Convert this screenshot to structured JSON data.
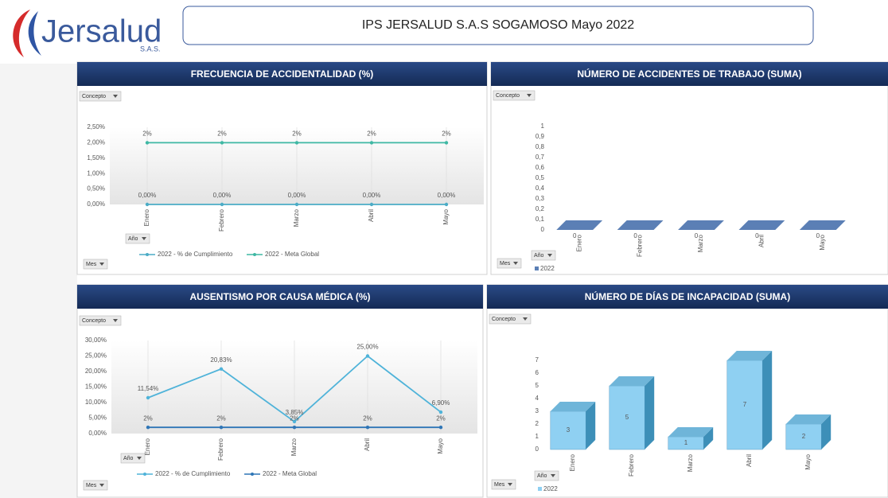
{
  "header": {
    "logo": "Jersalud",
    "logo_sub": "S.A.S.",
    "title": "IPS JERSALUD S.A.S SOGAMOSO  Mayo 2022"
  },
  "chart_data": [
    {
      "type": "line",
      "title": "FRECUENCIA DE ACCIDENTALIDAD (%)",
      "filters": [
        "Concepto",
        "Año",
        "Mes"
      ],
      "categories": [
        "Enero",
        "Febrero",
        "Marzo",
        "Abril",
        "Mayo"
      ],
      "series": [
        {
          "name": "2022 - % de Cumplimiento",
          "color": "#4bacc6",
          "values": [
            0,
            0,
            0,
            0,
            0
          ],
          "value_labels": [
            "0,00%",
            "0,00%",
            "0,00%",
            "0,00%",
            "0,00%"
          ]
        },
        {
          "name": "2022 - Meta Global",
          "color": "#3fb8a4",
          "values": [
            2,
            2,
            2,
            2,
            2
          ],
          "value_labels": [
            "2%",
            "2%",
            "2%",
            "2%",
            "2%"
          ]
        }
      ],
      "ylim": [
        0,
        2.5
      ],
      "yticks": [
        {
          "value": 0,
          "label": "0,00%"
        },
        {
          "value": 0.5,
          "label": "0,50%"
        },
        {
          "value": 1,
          "label": "1,00%"
        },
        {
          "value": 1.5,
          "label": "1,50%"
        },
        {
          "value": 2,
          "label": "2,00%"
        },
        {
          "value": 2.5,
          "label": "2,50%"
        }
      ],
      "grid": true
    },
    {
      "type": "bar",
      "title": "NÚMERO DE ACCIDENTES DE TRABAJO  (SUMA)",
      "filters": [
        "Concepto",
        "Año",
        "Mes"
      ],
      "categories": [
        "Enero",
        "Febrero",
        "Marzo",
        "Abril",
        "Mayo"
      ],
      "series": [
        {
          "name": "2022",
          "color": "#5b7fb5",
          "values": [
            0,
            0,
            0,
            0,
            0
          ]
        }
      ],
      "ylim": [
        0,
        1
      ],
      "yticks": [
        0,
        {
          "value": 0.1,
          "label": "0,1"
        },
        {
          "value": 0.2,
          "label": "0,2"
        },
        {
          "value": 0.3,
          "label": "0,3"
        },
        {
          "value": 0.4,
          "label": "0,4"
        },
        {
          "value": 0.5,
          "label": "0,5"
        },
        {
          "value": 0.6,
          "label": "0,6"
        },
        {
          "value": 0.7,
          "label": "0,7"
        },
        {
          "value": 0.8,
          "label": "0,8"
        },
        {
          "value": 0.9,
          "label": "0,9"
        },
        1
      ],
      "grid": false
    },
    {
      "type": "line",
      "title": "AUSENTISMO POR CAUSA MÉDICA (%)",
      "filters": [
        "Concepto",
        "Año",
        "Mes"
      ],
      "categories": [
        "Enero",
        "Febrero",
        "Marzo",
        "Abril",
        "Mayo"
      ],
      "series": [
        {
          "name": "2022 - % de Cumplimiento",
          "color": "#4fb3d9",
          "values": [
            11.54,
            20.83,
            3.85,
            25,
            6.9
          ],
          "value_labels": [
            "11,54%",
            "20,83%",
            "3,85%",
            "25,00%",
            "6,90%"
          ]
        },
        {
          "name": "2022 - Meta Global",
          "color": "#2e75b6",
          "values": [
            2,
            2,
            2,
            2,
            2
          ],
          "value_labels": [
            "2%",
            "2%",
            "2%",
            "2%",
            "2%"
          ]
        }
      ],
      "ylim": [
        0,
        30
      ],
      "yticks": [
        {
          "value": 0,
          "label": "0,00%"
        },
        {
          "value": 5,
          "label": "5,00%"
        },
        {
          "value": 10,
          "label": "10,00%"
        },
        {
          "value": 15,
          "label": "15,00%"
        },
        {
          "value": 20,
          "label": "20,00%"
        },
        {
          "value": 25,
          "label": "25,00%"
        },
        {
          "value": 30,
          "label": "30,00%"
        }
      ],
      "grid": true
    },
    {
      "type": "bar",
      "title": "NÚMERO DE DÍAS DE INCAPACIDAD (SUMA)",
      "filters": [
        "Concepto",
        "Año",
        "Mes"
      ],
      "categories": [
        "Enero",
        "Febrero",
        "Marzo",
        "Abril",
        "Mayo"
      ],
      "series": [
        {
          "name": "2022",
          "color": "#8fd0f2",
          "values": [
            3,
            5,
            1,
            7,
            2
          ]
        }
      ],
      "ylim": [
        0,
        7.5
      ],
      "yticks": [
        0,
        1,
        2,
        3,
        4,
        5,
        6,
        7
      ],
      "grid": false
    }
  ]
}
